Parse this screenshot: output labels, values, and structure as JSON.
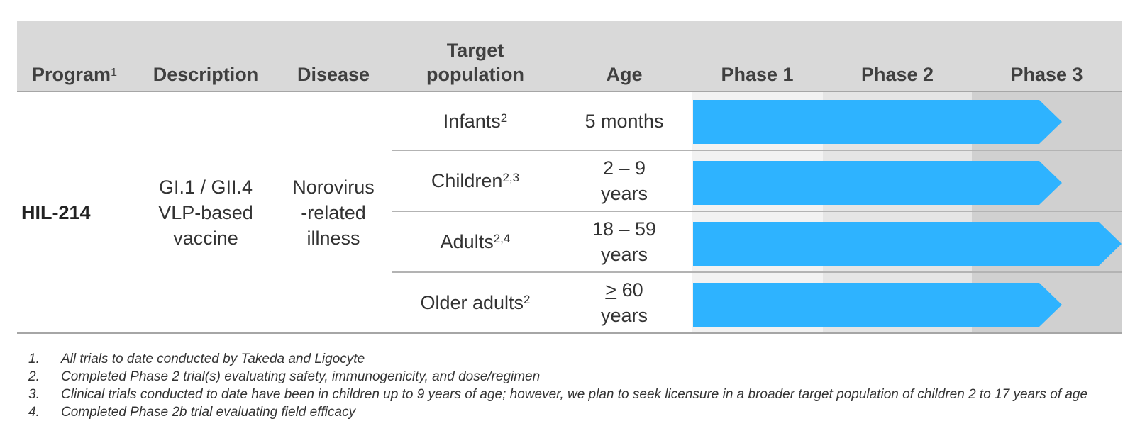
{
  "header": {
    "program": "Program",
    "program_sup": "1",
    "description": "Description",
    "disease": "Disease",
    "target_line1": "Target",
    "target_line2": "population",
    "age": "Age",
    "phase1": "Phase 1",
    "phase2": "Phase 2",
    "phase3": "Phase 3"
  },
  "program": {
    "name": "HIL-214",
    "description_lines": [
      "GI.1 / GII.4",
      "VLP-based",
      "vaccine"
    ],
    "disease_lines": [
      "Norovirus",
      "-related",
      "illness"
    ]
  },
  "rows": [
    {
      "population": "Infants",
      "sup": "2",
      "age_prefix": "",
      "age_line1": "5 months",
      "age_line2": "",
      "phase_progress": 2.6
    },
    {
      "population": "Children",
      "sup": "2,3",
      "age_prefix": "",
      "age_line1": "2 – 9",
      "age_line2": "years",
      "phase_progress": 2.6
    },
    {
      "population": "Adults",
      "sup": "2,4",
      "age_prefix": "",
      "age_line1": "18 – 59",
      "age_line2": "years",
      "phase_progress": 3.0
    },
    {
      "population": "Older adults",
      "sup": "2",
      "age_prefix": ">",
      "age_line1": " 60",
      "age_line2": "years",
      "phase_progress": 2.6
    }
  ],
  "footnotes": [
    {
      "num": "1.",
      "text": "All trials to date conducted by Takeda and Ligocyte"
    },
    {
      "num": "2.",
      "text": "Completed Phase 2 trial(s) evaluating safety, immunogenicity, and dose/regimen"
    },
    {
      "num": "3.",
      "text": "Clinical trials conducted to date have been in children up to 9 years of age; however, we plan to seek licensure in a broader target population of children 2 to 17 years of age"
    },
    {
      "num": "4.",
      "text": "Completed Phase 2b trial evaluating field efficacy"
    }
  ],
  "colors": {
    "bar": "#2eb3ff",
    "phase1_bg": "#f2f2f2",
    "phase2_bg": "#e5e5e5",
    "phase3_bg": "#d0d0d0",
    "header_bg": "#d9d9d9"
  }
}
